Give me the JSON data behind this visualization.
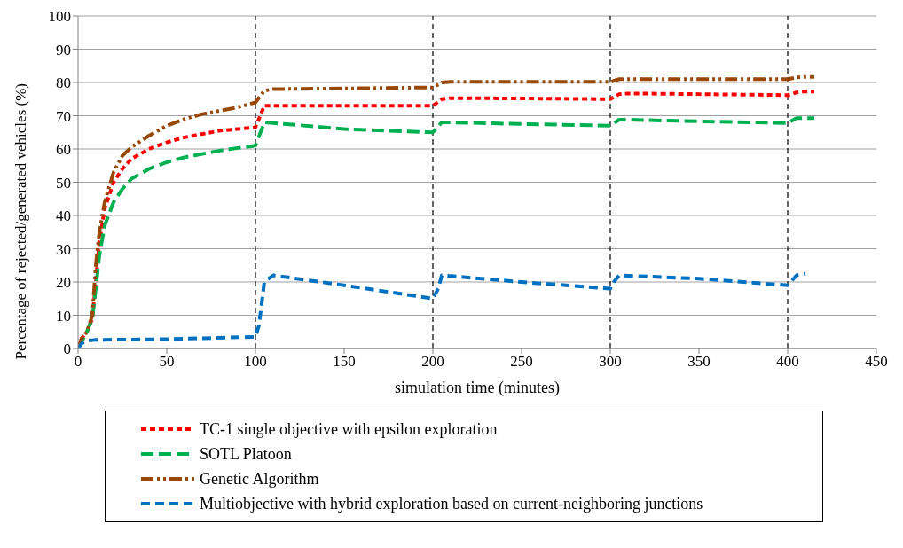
{
  "chart_data": {
    "type": "line",
    "xlabel": "simulation time (minutes)",
    "ylabel": "Percentage of rejected/generated vehicles (%)",
    "xlim": [
      0,
      450
    ],
    "xticks": [
      0,
      50,
      100,
      150,
      200,
      250,
      300,
      350,
      400,
      450
    ],
    "ylim": [
      0,
      100
    ],
    "yticks": [
      0,
      10,
      20,
      30,
      40,
      50,
      60,
      70,
      80,
      90,
      100
    ],
    "grid": "y",
    "legend": "bottom",
    "line_style": "dashed",
    "marker": "none",
    "ref_lines": [
      {
        "axis": "x",
        "value": 100,
        "color": "#000000",
        "line_style": "dashed"
      },
      {
        "axis": "x",
        "value": 200,
        "color": "#000000",
        "line_style": "dashed"
      },
      {
        "axis": "x",
        "value": 300,
        "color": "#000000",
        "line_style": "dashed"
      },
      {
        "axis": "x",
        "value": 400,
        "color": "#000000",
        "line_style": "dashed"
      }
    ],
    "series": [
      {
        "name": "TC-1 single objective with epsilon exploration",
        "color": "#ff0000",
        "x": [
          0,
          2,
          5,
          8,
          10,
          12,
          15,
          20,
          25,
          30,
          40,
          50,
          60,
          70,
          80,
          90,
          100,
          105,
          110,
          150,
          200,
          205,
          210,
          250,
          300,
          305,
          310,
          350,
          400,
          405,
          410,
          415
        ],
        "values": [
          0,
          3,
          5,
          9,
          20,
          32,
          42,
          50,
          54,
          57,
          60,
          62,
          63.5,
          64.5,
          65.5,
          66,
          66.5,
          73,
          73,
          73,
          73,
          75,
          75.3,
          75.2,
          75,
          76.5,
          76.7,
          76.5,
          76.2,
          77,
          77.3,
          77.3
        ]
      },
      {
        "name": "SOTL Platoon",
        "color": "#00b050",
        "x": [
          0,
          2,
          5,
          8,
          10,
          12,
          15,
          20,
          25,
          30,
          40,
          50,
          60,
          70,
          80,
          90,
          100,
          105,
          110,
          150,
          200,
          205,
          210,
          250,
          300,
          305,
          310,
          350,
          400,
          405,
          410,
          415
        ],
        "values": [
          0,
          2,
          5,
          9,
          18,
          28,
          37,
          44,
          48,
          51,
          54,
          56,
          57.5,
          58.5,
          59.5,
          60.3,
          61,
          68,
          67.8,
          66,
          65,
          68,
          68,
          67.5,
          67,
          68.8,
          68.8,
          68.3,
          67.8,
          69.3,
          69.3,
          69.3
        ]
      },
      {
        "name": "Genetic Algorithm",
        "color": "#984807",
        "x": [
          0,
          2,
          5,
          8,
          10,
          12,
          15,
          20,
          25,
          30,
          40,
          50,
          60,
          70,
          80,
          90,
          100,
          105,
          110,
          150,
          200,
          205,
          210,
          250,
          300,
          305,
          310,
          350,
          400,
          405,
          410,
          415
        ],
        "values": [
          0,
          3,
          5,
          10,
          25,
          35,
          44,
          53,
          58,
          60.5,
          64,
          67,
          69,
          70.5,
          71.5,
          72.5,
          74,
          77.5,
          78,
          78.2,
          78.5,
          80,
          80.2,
          80.2,
          80.2,
          81,
          81,
          81,
          81,
          81.5,
          81.7,
          81.7
        ]
      },
      {
        "name": "Multiobjective with hybrid exploration based on current-neighboring junctions",
        "color": "#0070c0",
        "x": [
          0,
          2,
          5,
          8,
          10,
          50,
          100,
          102,
          105,
          110,
          150,
          200,
          203,
          205,
          250,
          300,
          302,
          305,
          350,
          400,
          405,
          410
        ],
        "values": [
          0,
          1.5,
          2.5,
          2.5,
          2.6,
          2.8,
          3.5,
          7,
          20,
          22,
          19,
          15,
          18,
          22,
          20,
          18,
          20,
          22,
          21,
          19,
          22,
          22.5
        ]
      }
    ]
  }
}
